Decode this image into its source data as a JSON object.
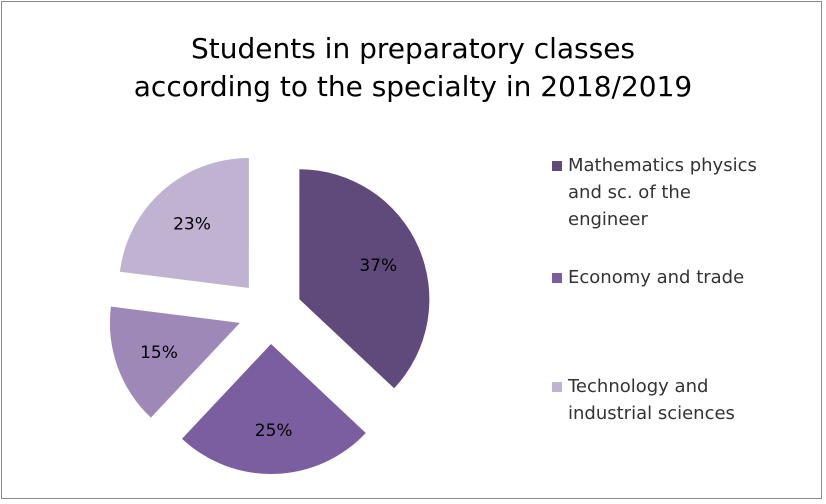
{
  "chart_data": {
    "type": "pie",
    "title_lines": [
      "Students in preparatory classes",
      "according to the specialty in 2018/2019"
    ],
    "slices": [
      {
        "name": "Mathematics physics and sc. of the engineer",
        "label_lines": [
          "Mathematics physics",
          "and sc. of the",
          "engineer"
        ],
        "value": 37,
        "label": "37%",
        "color": "#604a7b"
      },
      {
        "name": "Economy and trade",
        "label_lines": [
          "Economy and trade"
        ],
        "value": 25,
        "label": "25%",
        "color": "#7b5ea0"
      },
      {
        "name": "",
        "label_lines": [],
        "value": 15,
        "label": "15%",
        "color": "#9d88b8"
      },
      {
        "name": "Technology and industrial sciences",
        "label_lines": [
          "Technology and",
          "industrial sciences"
        ],
        "value": 23,
        "label": "23%",
        "color": "#bfb3d1"
      }
    ],
    "legend_position": "right"
  }
}
